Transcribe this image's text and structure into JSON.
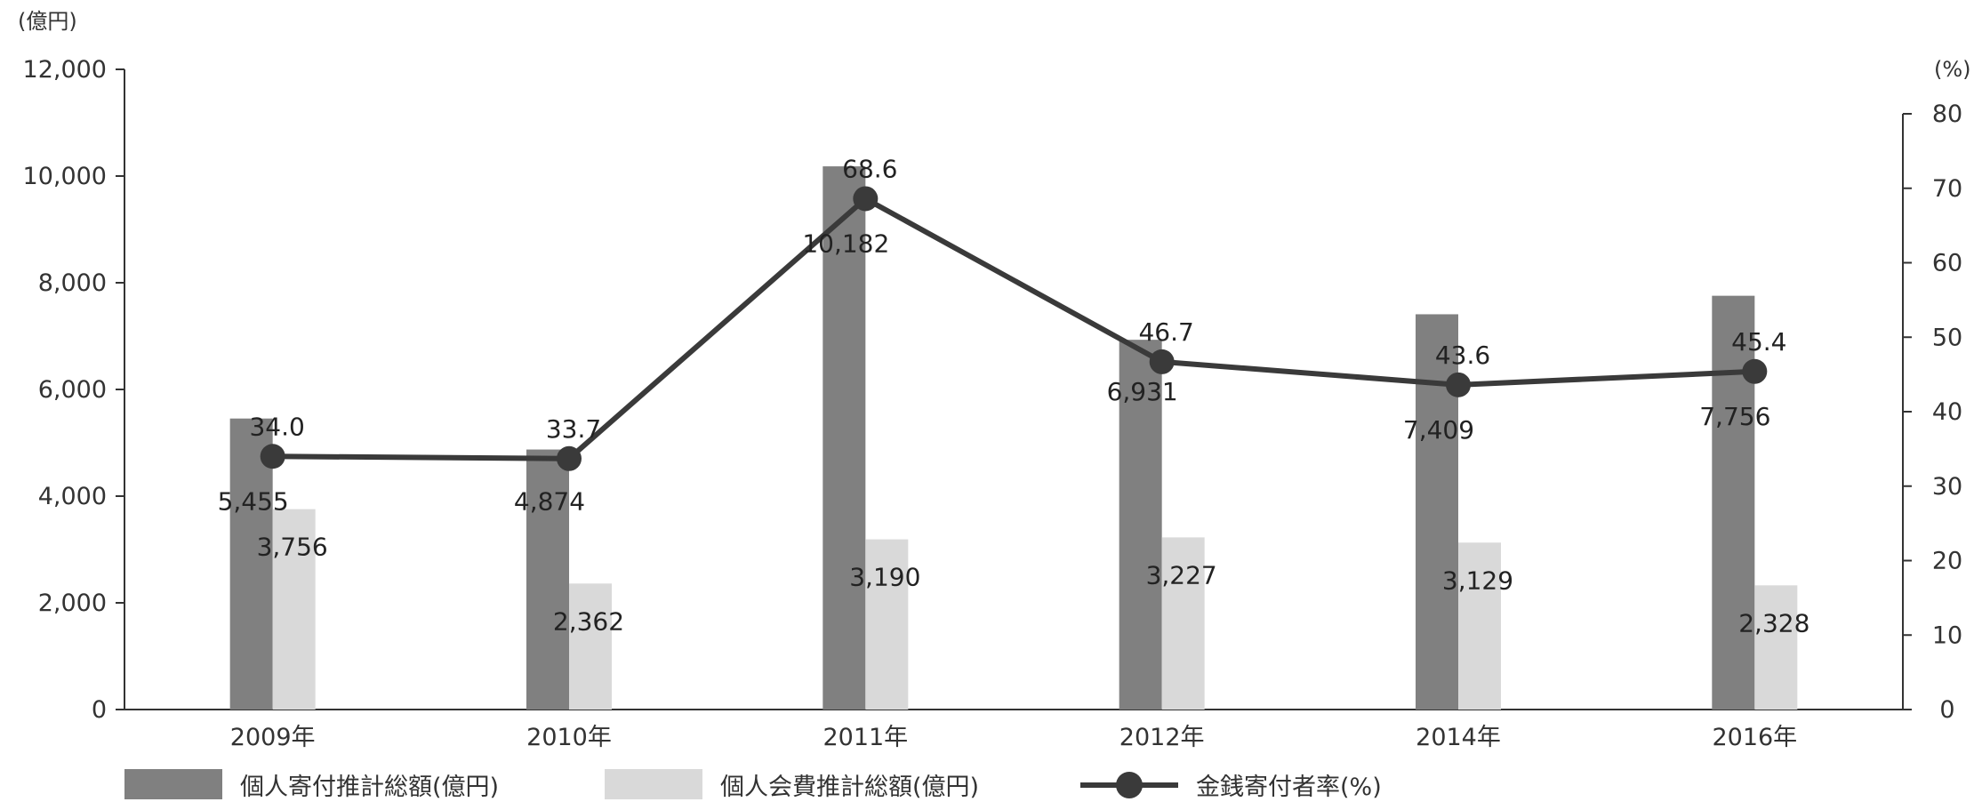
{
  "chart_data": {
    "type": "bar+line",
    "categories": [
      "2009年",
      "2010年",
      "2011年",
      "2012年",
      "2014年",
      "2016年"
    ],
    "series": [
      {
        "name": "個人寄付推計総額(億円)",
        "type": "bar",
        "axis": "left",
        "values": [
          5455,
          4874,
          10182,
          6931,
          7409,
          7756
        ],
        "labels": [
          "5,455",
          "4,874",
          "10,182",
          "6,931",
          "7,409",
          "7,756"
        ],
        "color": "#808080"
      },
      {
        "name": "個人会費推計総額(億円)",
        "type": "bar",
        "axis": "left",
        "values": [
          3756,
          2362,
          3190,
          3227,
          3129,
          2328
        ],
        "labels": [
          "3,756",
          "2,362",
          "3,190",
          "3,227",
          "3,129",
          "2,328"
        ],
        "color": "#d9d9d9"
      },
      {
        "name": "金銭寄付者率(%)",
        "type": "line",
        "axis": "right",
        "values": [
          34.0,
          33.7,
          68.6,
          46.7,
          43.6,
          45.4
        ],
        "labels": [
          "34.0",
          "33.7",
          "68.6",
          "46.7",
          "43.6",
          "45.4"
        ],
        "color": "#3a3a3a"
      }
    ],
    "left_axis": {
      "unit": "(億円)",
      "range": [
        0,
        12000
      ],
      "ticks": [
        "0",
        "2,000",
        "4,000",
        "6,000",
        "8,000",
        "10,000",
        "12,000"
      ]
    },
    "right_axis": {
      "unit": "(%)",
      "range": [
        0,
        80
      ],
      "ticks": [
        "0",
        "10",
        "20",
        "30",
        "40",
        "50",
        "60",
        "70",
        "80"
      ]
    },
    "grid": false,
    "legend_position": "bottom"
  }
}
